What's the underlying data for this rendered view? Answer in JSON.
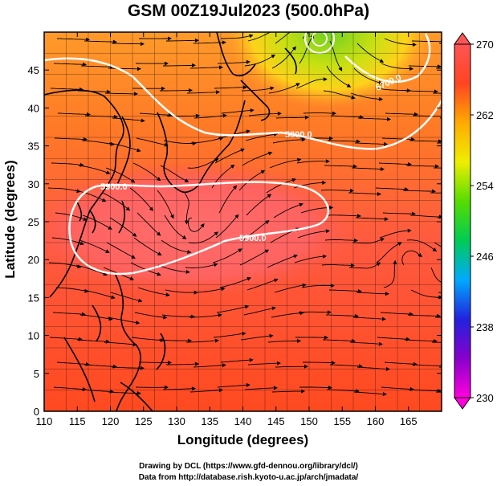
{
  "title": "GSM 00Z19Jul2023 (500.0hPa)",
  "x_axis": {
    "label": "Longitude (degrees)",
    "range": [
      110,
      170
    ],
    "ticks": [
      110,
      115,
      120,
      125,
      130,
      135,
      140,
      145,
      150,
      155,
      160,
      165
    ]
  },
  "y_axis": {
    "label": "Latitude (degrees)",
    "range": [
      0,
      50
    ],
    "ticks": [
      0,
      5,
      10,
      15,
      20,
      25,
      30,
      35,
      40,
      45
    ]
  },
  "colorbar": {
    "ticks": [
      230,
      238,
      246,
      254,
      262,
      270
    ],
    "range": [
      230,
      270
    ],
    "stops": [
      "#ff00dd",
      "#8800cc",
      "#2222dd",
      "#00aaff",
      "#00cc55",
      "#55dd00",
      "#eeee00",
      "#ffaa00",
      "#ff4422",
      "#ff5555"
    ]
  },
  "contours": [
    {
      "label": "5900.0"
    },
    {
      "label": "5800.0"
    },
    {
      "label": "5700.0"
    }
  ],
  "colors": {
    "field_orange": "#ff6a22",
    "field_red": "#ff5a48",
    "high_pink": "#ff6f6f",
    "north_yellow": "#ffd21a",
    "north_green": "#9bdd1a",
    "contour": "#ffffff",
    "streamline": "#000000"
  },
  "credits": {
    "line1": "Drawing by DCL (https://www.gfd-dennou.org/library/dcl/)",
    "line2": "Data from http://database.rish.kyoto-u.ac.jp/arch/jmadata/"
  }
}
